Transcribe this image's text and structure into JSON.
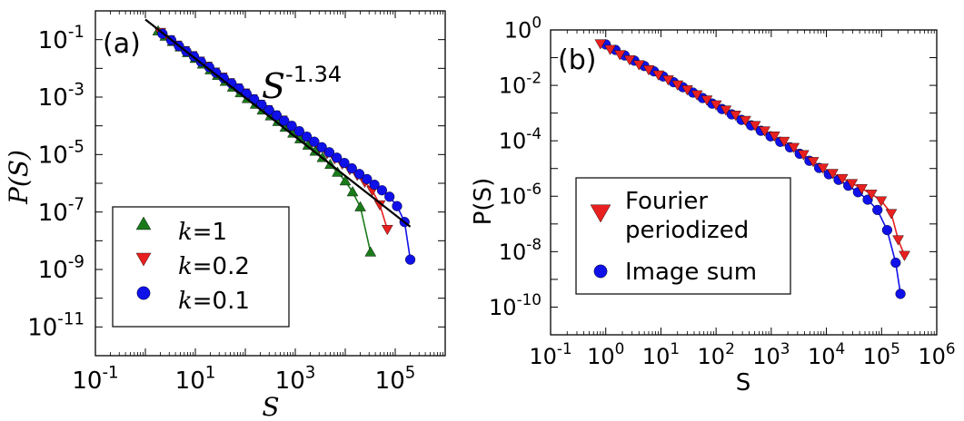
{
  "chart_data": [
    {
      "type": "scatter",
      "panel_label": "(a)",
      "xlabel": "S",
      "ylabel": "P(S)",
      "xscale": "log",
      "yscale": "log",
      "xlim_exp": [
        -1,
        6
      ],
      "ylim_exp": [
        -12,
        0
      ],
      "x_tick_exponents": [
        -1,
        1,
        3,
        5
      ],
      "y_tick_exponents": [
        -1,
        -3,
        -5,
        -7,
        -9,
        -11
      ],
      "tick_base": "10",
      "legend": {
        "placement": "lower-left",
        "entries": [
          {
            "label": "k=1",
            "marker": "triangle-up",
            "color": "#1a7a1a"
          },
          {
            "label": "k=0.2",
            "marker": "triangle-down",
            "color": "#e82020"
          },
          {
            "label": "k=0.1",
            "marker": "circle",
            "color": "#1010e8"
          }
        ]
      },
      "annotation": {
        "base": "S",
        "exponent": "-1.34"
      },
      "reference_line": {
        "slope": -1.34,
        "x": [
          1,
          200000
        ],
        "y": [
          0.5,
          3.08e-08
        ]
      },
      "series": [
        {
          "key": "k=1",
          "color": "#1a7a1a",
          "marker": "triangle-up",
          "x": [
            1.8,
            2.5,
            3.5,
            5,
            7,
            10,
            14,
            20,
            28,
            40,
            56,
            80,
            110,
            160,
            220,
            320,
            450,
            630,
            900,
            1250,
            1800,
            2500,
            3500,
            5000,
            7000,
            10000,
            14000,
            20000,
            32000
          ],
          "y": [
            0.2,
            0.13,
            0.085,
            0.055,
            0.035,
            0.022,
            0.014,
            0.0088,
            0.0056,
            0.0035,
            0.0022,
            0.0014,
            0.00088,
            0.00056,
            0.00035,
            0.00022,
            0.00014,
            8.8e-05,
            5.5e-05,
            3.5e-05,
            2.1e-05,
            1.3e-05,
            7.8e-06,
            4.5e-06,
            2.4e-06,
            1.2e-06,
            5e-07,
            1.5e-07,
            4e-09
          ]
        },
        {
          "key": "k=0.2",
          "color": "#e82020",
          "marker": "triangle-down",
          "x": [
            2,
            3,
            4.2,
            6,
            8.5,
            12,
            17,
            24,
            34,
            48,
            68,
            96,
            136,
            192,
            272,
            384,
            543,
            768,
            1086,
            1536,
            2172,
            3072,
            4344,
            6144,
            8689,
            12288,
            17377,
            24576,
            34755,
            49152,
            69511
          ],
          "y": [
            0.18,
            0.1,
            0.065,
            0.042,
            0.028,
            0.018,
            0.012,
            0.0075,
            0.005,
            0.0032,
            0.0021,
            0.0014,
            0.00088,
            0.00057,
            0.00037,
            0.00024,
            0.00016,
            0.0001,
            6.5e-05,
            4.2e-05,
            2.7e-05,
            1.7e-05,
            1.1e-05,
            7.2e-06,
            4.7e-06,
            3e-06,
            1.9e-06,
            1.1e-06,
            5.6e-07,
            1.8e-07,
            2.5e-08
          ]
        },
        {
          "key": "k=0.1",
          "color": "#1010e8",
          "marker": "circle",
          "x": [
            2.2,
            3.3,
            4.7,
            6.6,
            9.4,
            13,
            19,
            26,
            37,
            53,
            75,
            106,
            150,
            212,
            300,
            424,
            600,
            848,
            1200,
            1697,
            2400,
            3394,
            4800,
            6788,
            9600,
            13576,
            19200,
            27153,
            38400,
            54306,
            76800,
            108612,
            153600,
            200000
          ],
          "y": [
            0.16,
            0.095,
            0.06,
            0.039,
            0.026,
            0.017,
            0.011,
            0.007,
            0.0046,
            0.003,
            0.002,
            0.0013,
            0.00084,
            0.00054,
            0.00035,
            0.00023,
            0.00015,
            0.0001,
            6.5e-05,
            4.2e-05,
            2.8e-05,
            1.8e-05,
            1.2e-05,
            7.8e-06,
            5.1e-06,
            3.3e-06,
            2.1e-06,
            1.4e-06,
            8.9e-07,
            5.7e-07,
            3.4e-07,
            1.6e-07,
            4.5e-08,
            2.2e-09
          ]
        }
      ]
    },
    {
      "type": "scatter",
      "panel_label": "(b)",
      "xlabel": "S",
      "ylabel": "P(S)",
      "xscale": "log",
      "yscale": "log",
      "xlim_exp": [
        -1,
        6
      ],
      "ylim_exp": [
        -11,
        0
      ],
      "x_tick_exponents": [
        -1,
        0,
        1,
        2,
        3,
        4,
        5,
        6
      ],
      "y_tick_exponents": [
        0,
        -2,
        -4,
        -6,
        -8,
        -10
      ],
      "tick_base": "10",
      "legend": {
        "placement": "lower-left",
        "entries": [
          {
            "label": "Fourier",
            "label2": "periodized",
            "marker": "triangle-down",
            "color": "#e82020"
          },
          {
            "label": "Image sum",
            "marker": "circle",
            "color": "#1010e8"
          }
        ]
      },
      "series": [
        {
          "key": "image-sum",
          "color": "#1010e8",
          "marker": "circle",
          "x": [
            1,
            1.5,
            2.2,
            3.3,
            5,
            7.5,
            11,
            17,
            25,
            38,
            57,
            85,
            128,
            192,
            288,
            432,
            648,
            972,
            1458,
            2187,
            3281,
            4921,
            7382,
            11073,
            16610,
            24914,
            37371,
            56057,
            84085,
            126128,
            180000,
            220000
          ],
          "y": [
            0.3,
            0.19,
            0.12,
            0.078,
            0.05,
            0.032,
            0.021,
            0.013,
            0.0086,
            0.0055,
            0.0035,
            0.0022,
            0.0014,
            0.0009,
            0.00057,
            0.00036,
            0.00023,
            0.000145,
            9.2e-05,
            5.8e-05,
            3.4e-05,
            1.9e-05,
            1.05e-05,
            6.2e-06,
            3.9e-06,
            2.4e-06,
            1.4e-06,
            7.5e-07,
            3.2e-07,
            6e-08,
            4e-09,
            3e-10
          ]
        },
        {
          "key": "fourier-periodized",
          "color": "#e82020",
          "marker": "triangle-down",
          "x": [
            0.8,
            1.2,
            1.8,
            2.7,
            4,
            6,
            9,
            13.5,
            20,
            30,
            45,
            68,
            100,
            150,
            225,
            340,
            510,
            760,
            1140,
            1710,
            2560,
            3840,
            5770,
            8650,
            13000,
            19500,
            29200,
            43800,
            65700,
            98500,
            150000,
            200000,
            260000
          ],
          "y": [
            0.32,
            0.2,
            0.13,
            0.085,
            0.056,
            0.037,
            0.024,
            0.016,
            0.0105,
            0.007,
            0.0046,
            0.003,
            0.002,
            0.0013,
            0.00085,
            0.00055,
            0.00036,
            0.00023,
            0.00015,
            9.7e-05,
            5.8e-05,
            3.2e-05,
            1.8e-05,
            1.05e-05,
            6.7e-06,
            4.4e-06,
            2.9e-06,
            1.9e-06,
            1.2e-06,
            6.9e-07,
            2.4e-07,
            2.7e-08,
            7.4e-09
          ]
        }
      ]
    }
  ]
}
